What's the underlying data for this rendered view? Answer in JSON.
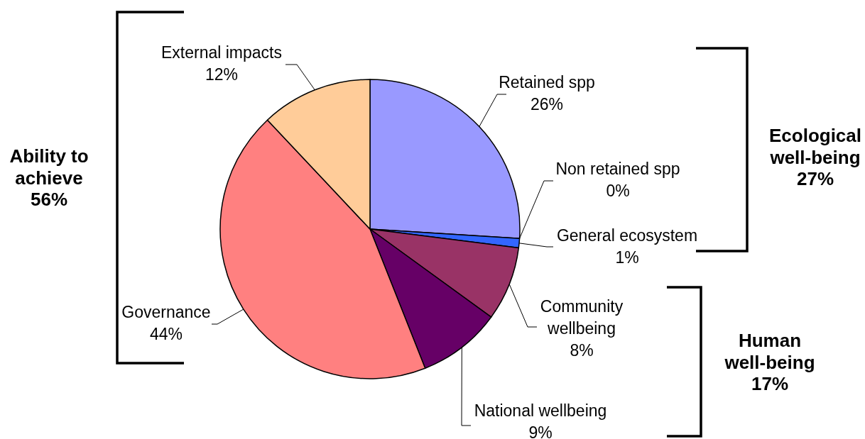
{
  "chart_data": {
    "type": "pie",
    "categories": [
      "Retained spp",
      "Non retained spp",
      "General ecosystem",
      "Community wellbeing",
      "National wellbeing",
      "Governance",
      "External impacts"
    ],
    "values": [
      26,
      0,
      1,
      8,
      9,
      44,
      12
    ],
    "value_labels": [
      "26%",
      "0%",
      "1%",
      "8%",
      "9%",
      "44%",
      "12%"
    ],
    "colors": [
      "#9999ff",
      null,
      "#3366ff",
      "#993366",
      "#660066",
      "#ff8080",
      "#ffcc99"
    ],
    "annotations": [
      "Ability to achieve 56%",
      "Ecological well-being 27%",
      "Human well-being 17%"
    ]
  }
}
